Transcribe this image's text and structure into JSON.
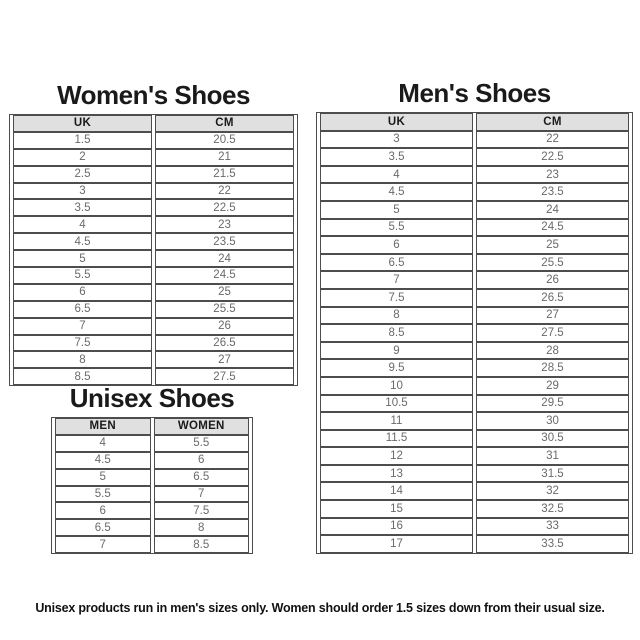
{
  "colors": {
    "page_bg": "#ffffff",
    "header_bg": "#e0e0e0",
    "table_border": "#4d4d4d",
    "header_text": "#1a1a1a",
    "cell_text": "#6a6a6a",
    "title_text": "#1a1a1a"
  },
  "chart_data": [
    {
      "type": "table",
      "title": "Women's Shoes",
      "columns": [
        "UK",
        "CM"
      ],
      "rows": [
        [
          "1.5",
          "20.5"
        ],
        [
          "2",
          "21"
        ],
        [
          "2.5",
          "21.5"
        ],
        [
          "3",
          "22"
        ],
        [
          "3.5",
          "22.5"
        ],
        [
          "4",
          "23"
        ],
        [
          "4.5",
          "23.5"
        ],
        [
          "5",
          "24"
        ],
        [
          "5.5",
          "24.5"
        ],
        [
          "6",
          "25"
        ],
        [
          "6.5",
          "25.5"
        ],
        [
          "7",
          "26"
        ],
        [
          "7.5",
          "26.5"
        ],
        [
          "8",
          "27"
        ],
        [
          "8.5",
          "27.5"
        ]
      ]
    },
    {
      "type": "table",
      "title": "Men's Shoes",
      "columns": [
        "UK",
        "CM"
      ],
      "rows": [
        [
          "3",
          "22"
        ],
        [
          "3.5",
          "22.5"
        ],
        [
          "4",
          "23"
        ],
        [
          "4.5",
          "23.5"
        ],
        [
          "5",
          "24"
        ],
        [
          "5.5",
          "24.5"
        ],
        [
          "6",
          "25"
        ],
        [
          "6.5",
          "25.5"
        ],
        [
          "7",
          "26"
        ],
        [
          "7.5",
          "26.5"
        ],
        [
          "8",
          "27"
        ],
        [
          "8.5",
          "27.5"
        ],
        [
          "9",
          "28"
        ],
        [
          "9.5",
          "28.5"
        ],
        [
          "10",
          "29"
        ],
        [
          "10.5",
          "29.5"
        ],
        [
          "11",
          "30"
        ],
        [
          "11.5",
          "30.5"
        ],
        [
          "12",
          "31"
        ],
        [
          "13",
          "31.5"
        ],
        [
          "14",
          "32"
        ],
        [
          "15",
          "32.5"
        ],
        [
          "16",
          "33"
        ],
        [
          "17",
          "33.5"
        ]
      ]
    },
    {
      "type": "table",
      "title": "Unisex Shoes",
      "columns": [
        "MEN",
        "WOMEN"
      ],
      "rows": [
        [
          "4",
          "5.5"
        ],
        [
          "4.5",
          "6"
        ],
        [
          "5",
          "6.5"
        ],
        [
          "5.5",
          "7"
        ],
        [
          "6",
          "7.5"
        ],
        [
          "6.5",
          "8"
        ],
        [
          "7",
          "8.5"
        ]
      ]
    }
  ],
  "footer": {
    "note": "Unisex products run in men's sizes only. Women should order 1.5 sizes down from their usual size."
  }
}
